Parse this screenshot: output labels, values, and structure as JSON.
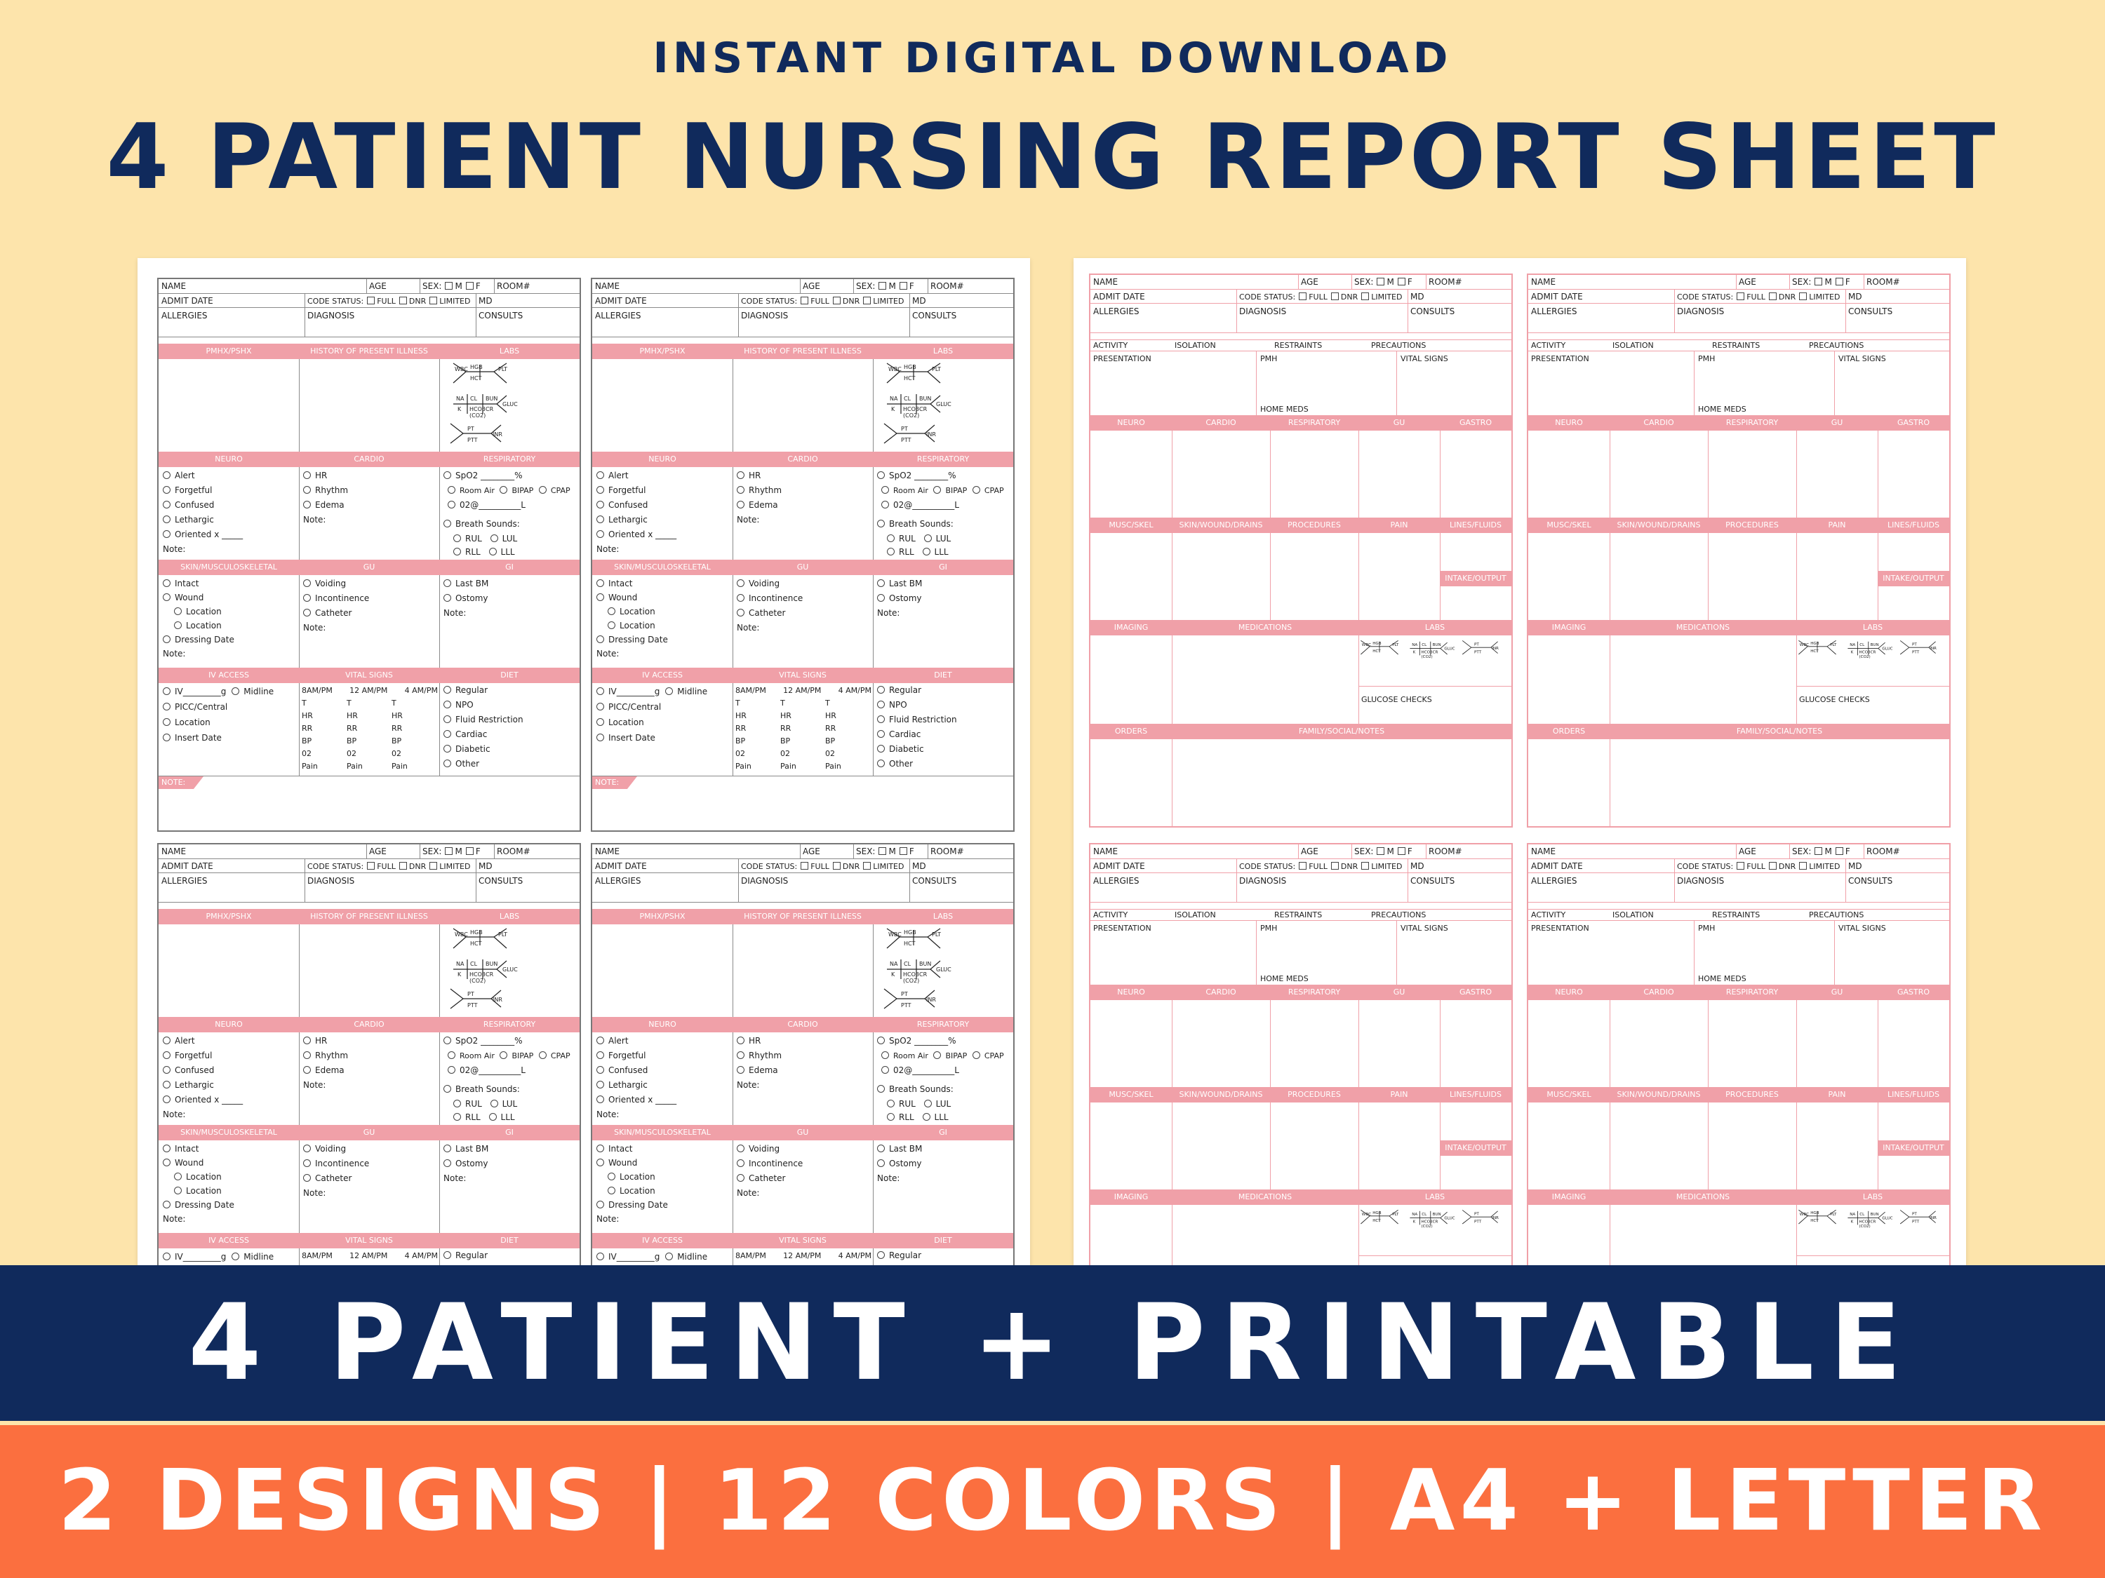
{
  "header": {
    "kicker": "INSTANT DIGITAL DOWNLOAD",
    "title": "4 PATIENT NURSING REPORT SHEET"
  },
  "footer": {
    "banner": "4 PATIENT + PRINTABLE",
    "sub": "2 DESIGNS | 12 COLORS | A4 + LETTER"
  },
  "form": {
    "name": "NAME",
    "age": "AGE",
    "sex": "SEX:",
    "sex_m": "M",
    "sex_f": "F",
    "room": "ROOM#",
    "admit_date": "ADMIT DATE",
    "code_status": "CODE STATUS:",
    "code_full": "FULL",
    "code_dnr": "DNR",
    "code_limited": "LIMITED",
    "md": "MD",
    "allergies": "ALLERGIES",
    "diagnosis": "DIAGNOSIS",
    "consults": "CONSULTS"
  },
  "design1": {
    "sections": {
      "pmhx": "PMHX/PSHX",
      "hpi": "HISTORY OF PRESENT ILLNESS",
      "labs": "LABS",
      "neuro": "NEURO",
      "cardio": "CARDIO",
      "resp": "RESPIRATORY",
      "skin": "SKIN/MUSCULOSKELETAL",
      "gu": "GU",
      "gi": "GI",
      "iv": "IV ACCESS",
      "vitals": "VITAL SIGNS",
      "diet": "DIET",
      "note_tab": "NOTE:"
    },
    "neuro": [
      "Alert",
      "Forgetful",
      "Confused",
      "Lethargic",
      "Oriented x _____"
    ],
    "note": "Note:",
    "cardio": [
      "HR",
      "Rhythm",
      "Edema"
    ],
    "resp": {
      "spo2": "SpO2 ________%",
      "room_air": "Room Air",
      "bipap": "BIPAP",
      "cpap": "CPAP",
      "o2": "02@__________L",
      "breath": "Breath Sounds:",
      "rul": "RUL",
      "lul": "LUL",
      "rll": "RLL",
      "lll": "LLL"
    },
    "skin": [
      "Intact",
      "Wound",
      "Location",
      "Location",
      "Dressing Date"
    ],
    "gu": [
      "Voiding",
      "Incontinence",
      "Catheter"
    ],
    "gi": [
      "Last BM",
      "Ostomy"
    ],
    "iv": {
      "line1": "IV_________g",
      "midline": "Midline",
      "picc": "PICC/Central",
      "location": "Location",
      "insert": "Insert Date"
    },
    "vitals_head": [
      "8AM/PM",
      "12 AM/PM",
      "4 AM/PM"
    ],
    "vitals_rows": [
      "T",
      "HR",
      "RR",
      "BP",
      "02",
      "Pain"
    ],
    "diet": [
      "Regular",
      "NPO",
      "Fluid Restriction",
      "Cardiac",
      "Diabetic",
      "Other"
    ]
  },
  "labs": {
    "wbc": "WBC",
    "hgb": "HGB",
    "hct": "HCT",
    "plt": "PLT",
    "na": "NA",
    "cl": "CL",
    "bun": "BUN",
    "k": "K",
    "hco3": "HCO3",
    "co2": "(CO2)",
    "cr": "CR",
    "gluc": "GLUC",
    "pt": "PT",
    "ptt": "PTT",
    "inr": "INR"
  },
  "design2": {
    "activity": "ACTIVITY",
    "isolation": "ISOLATION",
    "restraints": "RESTRAINTS",
    "precautions": "PRECAUTIONS",
    "presentation": "PRESENTATION",
    "pmh": "PMH",
    "vital_signs": "VITAL SIGNS",
    "home_meds": "HOME MEDS",
    "neuro": "NEURO",
    "cardio": "CARDIO",
    "resp": "RESPIRATORY",
    "gu": "GU",
    "gastro": "GASTRO",
    "musc": "MUSC/SKEL",
    "skin": "SKIN/WOUND/DRAINS",
    "procedures": "PROCEDURES",
    "pain": "PAIN",
    "lines": "LINES/FLUIDS",
    "intake": "INTAKE/OUTPUT",
    "imaging": "IMAGING",
    "medications": "MEDICATIONS",
    "labs": "LABS",
    "glucose": "GLUCOSE CHECKS",
    "orders": "ORDERS",
    "family": "FAMILY/SOCIAL/NOTES"
  },
  "colors": {
    "navy": "#102a5c",
    "cream": "#fde4ab",
    "orange": "#fb6f3f",
    "pink": "#f0a0a8"
  }
}
